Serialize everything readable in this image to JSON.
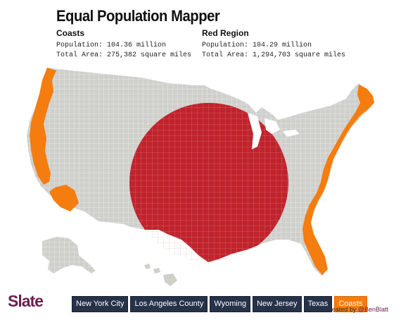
{
  "title": "Equal Population Mapper",
  "regions": {
    "left": {
      "name": "Coasts",
      "population": "Population: 104.36 million",
      "area": "Total Area: 275,382 square miles"
    },
    "right": {
      "name": "Red Region",
      "population": "Population: 104.29 million",
      "area": "Total Area: 1,294,703 square miles"
    }
  },
  "map": {
    "land_color": "#cfcfcb",
    "border_color": "#ffffff",
    "red_region_color": "#c0232c",
    "coast_color": "#f57c0e"
  },
  "logo": "Slate",
  "buttons": [
    {
      "label": "New York City",
      "active": false
    },
    {
      "label": "Los Angeles County",
      "active": false
    },
    {
      "label": "Wyoming",
      "active": false
    },
    {
      "label": "New Jersey",
      "active": false
    },
    {
      "label": "Texas",
      "active": false
    },
    {
      "label": "Coasts",
      "active": true
    }
  ],
  "credit": {
    "prefix": "Created by ",
    "handle": "@BenBlatt"
  }
}
